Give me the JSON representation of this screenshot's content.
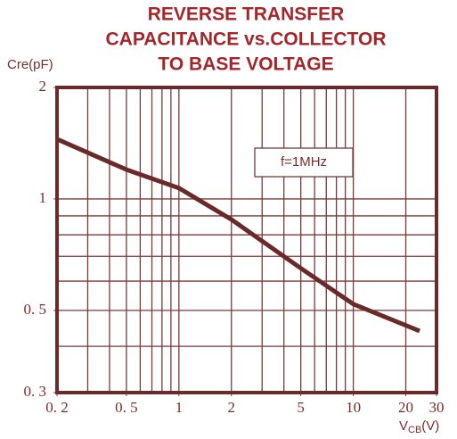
{
  "chart_data": {
    "type": "line",
    "title": [
      "REVERSE TRANSFER",
      "CAPACITANCE vs.COLLECTOR",
      "TO BASE VOLTAGE"
    ],
    "y_label": "Cre(pF)",
    "x_label": {
      "main": "V",
      "sub": "CB",
      "unit": "(V)"
    },
    "annotation": "f=1MHz",
    "log_x": true,
    "log_y": true,
    "grid": true,
    "xlim": [
      0.2,
      30
    ],
    "ylim": [
      0.3,
      2
    ],
    "xticks": [
      {
        "value": 0.2,
        "label": "0. 2"
      },
      {
        "value": 0.5,
        "label": "0. 5"
      },
      1,
      2,
      5,
      10,
      20,
      30
    ],
    "yticks": [
      {
        "value": 0.3,
        "label": "0. 3"
      },
      {
        "value": 0.5,
        "label": "0. 5"
      },
      1,
      2
    ],
    "xgrid": [
      0.3,
      0.4,
      0.5,
      0.6,
      0.7,
      0.8,
      0.9,
      1,
      2,
      3,
      4,
      5,
      6,
      7,
      8,
      9,
      10,
      20
    ],
    "ygrid": [
      0.4,
      0.5,
      0.6,
      0.7,
      0.8,
      0.9,
      1
    ],
    "color": "#6b2a2a",
    "grid_color": "#7a3a3a",
    "x": [
      0.2,
      0.5,
      1,
      2,
      5,
      10,
      24
    ],
    "values": [
      1.45,
      1.2,
      1.07,
      0.88,
      0.65,
      0.52,
      0.44
    ]
  }
}
